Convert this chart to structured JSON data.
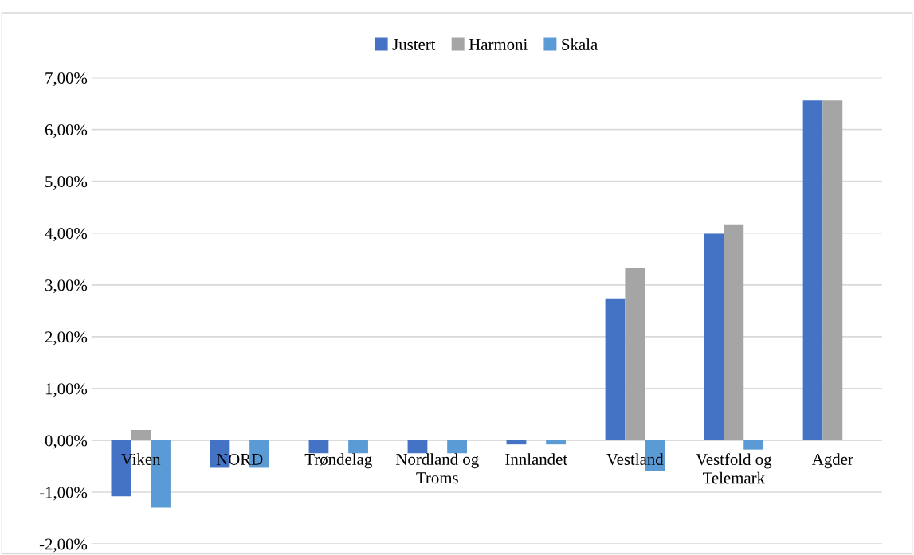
{
  "chart_data": {
    "type": "bar",
    "categories": [
      "Viken",
      "NORD",
      "Trøndelag",
      "Nordland og\nTroms",
      "Innlandet",
      "Vestland",
      "Vestfold og\nTelemark",
      "Agder"
    ],
    "series": [
      {
        "name": "Justert",
        "color": "#4472c4",
        "values": [
          -1.08,
          -0.53,
          -0.25,
          -0.25,
          -0.08,
          2.74,
          3.99,
          6.56
        ]
      },
      {
        "name": "Harmoni",
        "color": "#a5a5a5",
        "values": [
          0.2,
          0,
          0,
          0,
          0,
          3.32,
          4.17,
          6.56
        ]
      },
      {
        "name": "Skala",
        "color": "#5b9bd5",
        "values": [
          -1.3,
          -0.53,
          -0.25,
          -0.25,
          -0.08,
          -0.6,
          -0.18,
          0
        ]
      }
    ],
    "ylim": [
      -2,
      7
    ],
    "yticks": [
      {
        "value": -2,
        "label": "-2,00%"
      },
      {
        "value": -1,
        "label": "-1,00%"
      },
      {
        "value": 0,
        "label": "0,00%"
      },
      {
        "value": 1,
        "label": "1,00%"
      },
      {
        "value": 2,
        "label": "2,00%"
      },
      {
        "value": 3,
        "label": "3,00%"
      },
      {
        "value": 4,
        "label": "4,00%"
      },
      {
        "value": 5,
        "label": "5,00%"
      },
      {
        "value": 6,
        "label": "6,00%"
      },
      {
        "value": 7,
        "label": "7,00%"
      }
    ],
    "grid": "y",
    "legend": "top"
  }
}
